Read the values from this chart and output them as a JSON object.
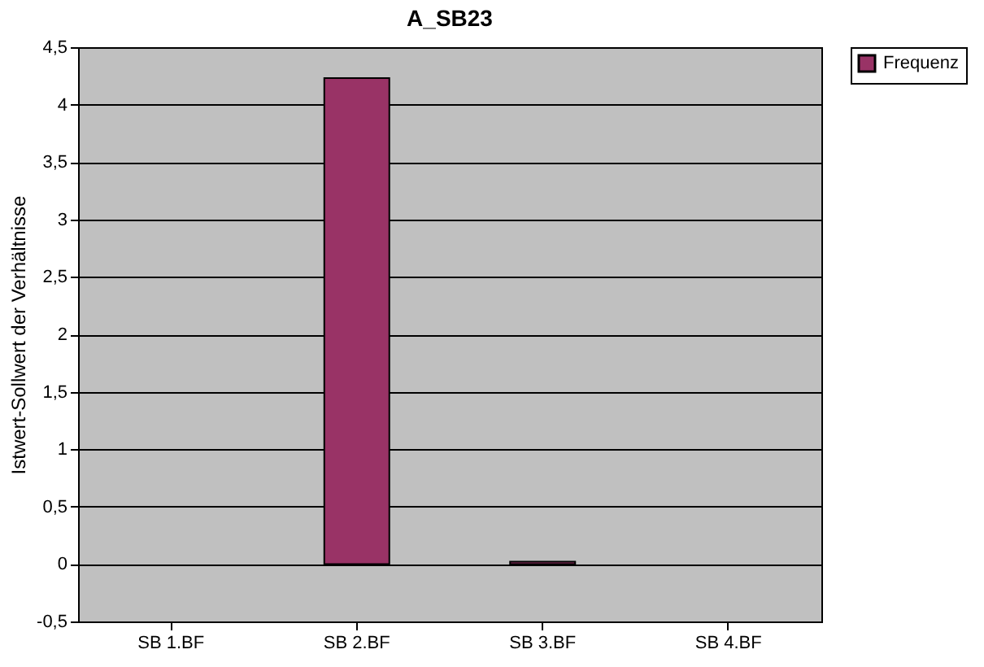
{
  "chart_data": {
    "type": "bar",
    "title": "A_SB23",
    "ylabel": "Istwert-Sollwert der Verhältnisse",
    "categories": [
      "SB 1.BF",
      "SB 2.BF",
      "SB 3.BF",
      "SB 4.BF"
    ],
    "series": [
      {
        "name": "Frequenz",
        "color": "#993366",
        "values": [
          null,
          4.23,
          0.02,
          null
        ]
      }
    ],
    "ylim": [
      -0.5,
      4.5
    ],
    "yticks": [
      {
        "value": -0.5,
        "label": "-0,5"
      },
      0,
      {
        "value": 0.5,
        "label": "0,5"
      },
      1,
      {
        "value": 1.5,
        "label": "1,5"
      },
      2,
      {
        "value": 2.5,
        "label": "2,5"
      },
      3,
      {
        "value": 3.5,
        "label": "3,5"
      },
      4,
      {
        "value": 4.5,
        "label": "4,5"
      }
    ],
    "grid": "y",
    "legend": "right"
  }
}
